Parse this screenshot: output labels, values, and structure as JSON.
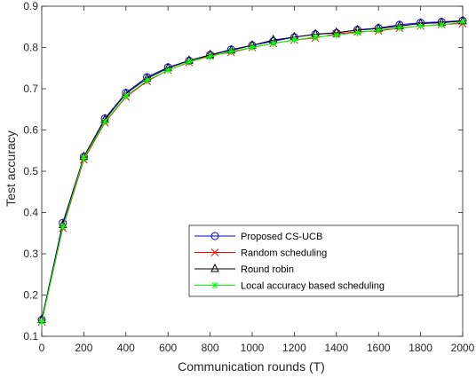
{
  "chart_data": {
    "type": "line",
    "title": "",
    "xlabel": "Communication rounds (T)",
    "ylabel": "Test accuracy",
    "xlim": [
      0,
      2000
    ],
    "ylim": [
      0.1,
      0.9
    ],
    "xticks": [
      0,
      200,
      400,
      600,
      800,
      1000,
      1200,
      1400,
      1600,
      1800,
      2000
    ],
    "yticks": [
      0.1,
      0.2,
      0.3,
      0.4,
      0.5,
      0.6,
      0.7,
      0.8,
      0.9
    ],
    "grid": false,
    "legend_position": "bottom-right",
    "x": [
      0,
      100,
      200,
      300,
      400,
      500,
      600,
      700,
      800,
      900,
      1000,
      1100,
      1200,
      1300,
      1400,
      1500,
      1600,
      1700,
      1800,
      1900,
      2000
    ],
    "series": [
      {
        "name": "Proposed CS-UCB",
        "color": "#0000ff",
        "marker": "circle",
        "values": [
          0.14,
          0.375,
          0.535,
          0.628,
          0.69,
          0.728,
          0.752,
          0.768,
          0.782,
          0.795,
          0.805,
          0.815,
          0.825,
          0.832,
          0.835,
          0.843,
          0.847,
          0.855,
          0.86,
          0.862,
          0.865
        ]
      },
      {
        "name": "Random scheduling",
        "color": "#ff0000",
        "marker": "x",
        "values": [
          0.135,
          0.362,
          0.528,
          0.618,
          0.68,
          0.718,
          0.745,
          0.764,
          0.78,
          0.788,
          0.8,
          0.81,
          0.818,
          0.823,
          0.833,
          0.838,
          0.84,
          0.847,
          0.852,
          0.856,
          0.858
        ]
      },
      {
        "name": "Round robin",
        "color": "#000000",
        "marker": "triangle",
        "values": [
          0.14,
          0.37,
          0.535,
          0.625,
          0.688,
          0.725,
          0.75,
          0.768,
          0.782,
          0.793,
          0.805,
          0.818,
          0.825,
          0.832,
          0.836,
          0.842,
          0.846,
          0.852,
          0.858,
          0.86,
          0.864
        ]
      },
      {
        "name": "Local accuracy based scheduling",
        "color": "#00ff00",
        "marker": "asterisk",
        "values": [
          0.135,
          0.365,
          0.532,
          0.62,
          0.682,
          0.72,
          0.745,
          0.765,
          0.778,
          0.79,
          0.8,
          0.81,
          0.818,
          0.825,
          0.83,
          0.836,
          0.842,
          0.848,
          0.852,
          0.855,
          0.862
        ]
      }
    ]
  }
}
